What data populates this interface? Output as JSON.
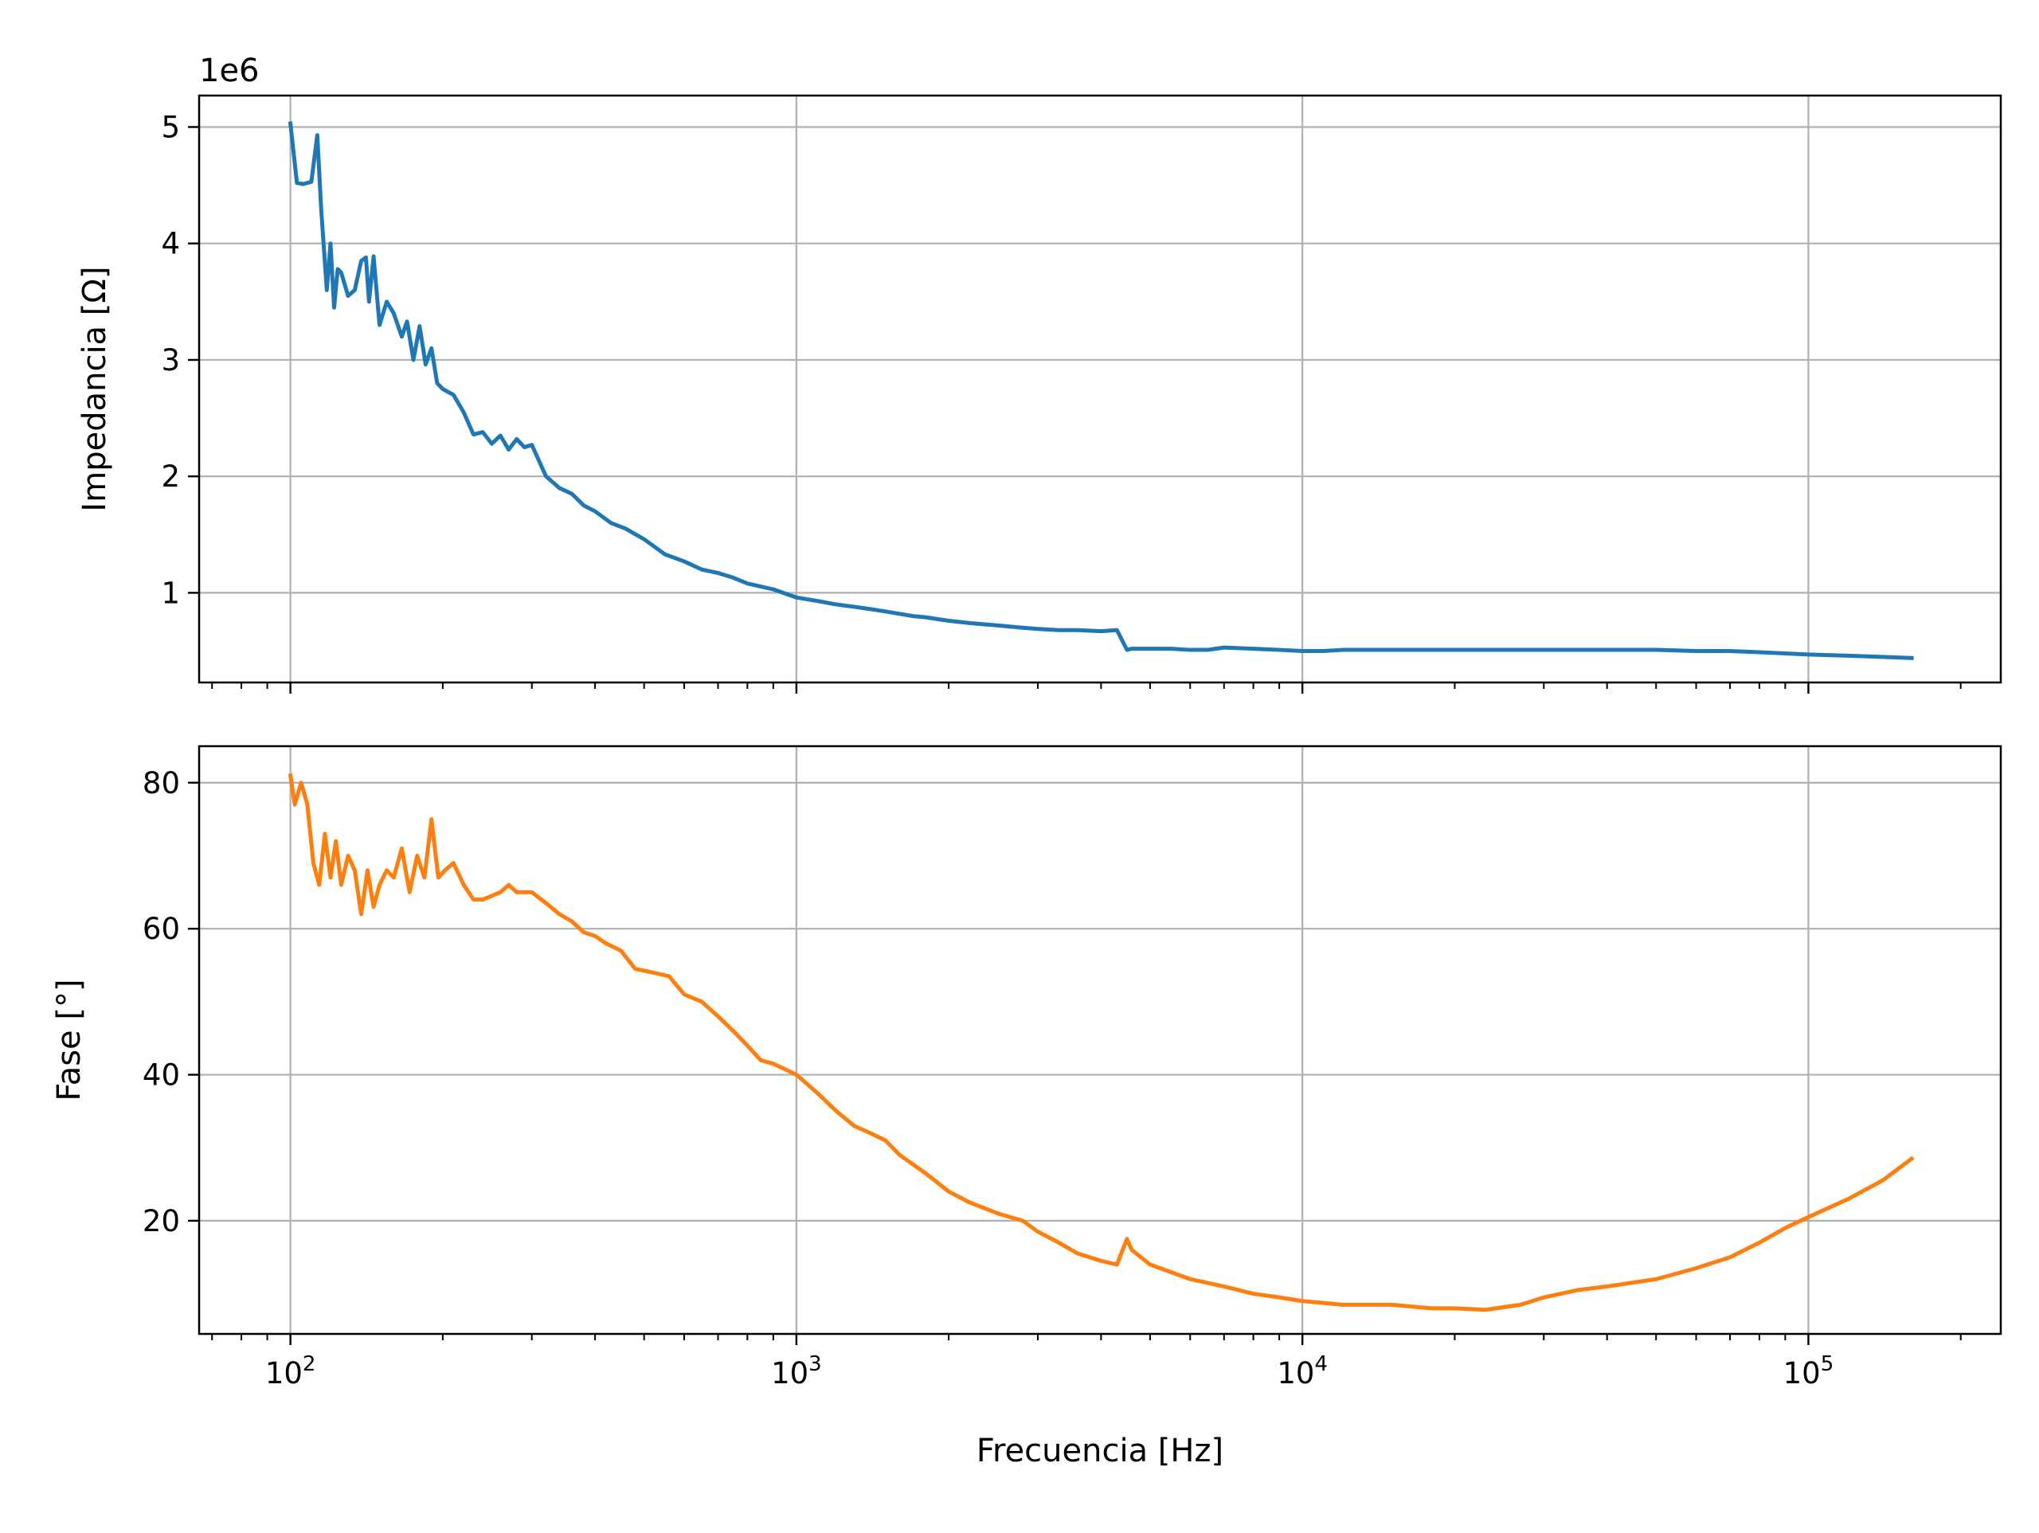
{
  "chart_data": [
    {
      "type": "line",
      "title": "",
      "xlabel": "",
      "ylabel": "Impedancia [Ω]",
      "x_scale": "log",
      "xlim": [
        66,
        240000
      ],
      "ylim": [
        230000,
        5270000
      ],
      "y_offset_label": "1e6",
      "x_ticks": [
        100,
        1000,
        10000,
        100000
      ],
      "x_tick_labels": [
        "",
        "",
        "",
        ""
      ],
      "y_ticks": [
        1000000,
        2000000,
        3000000,
        4000000,
        5000000
      ],
      "y_tick_labels": [
        "1",
        "2",
        "3",
        "4",
        "5"
      ],
      "grid": true,
      "legend": "none",
      "series": [
        {
          "color": "#1f77b4",
          "x": [
            100,
            103,
            106,
            110,
            113,
            115,
            118,
            120,
            122,
            124,
            126,
            130,
            134,
            138,
            141,
            143,
            146,
            150,
            155,
            160,
            166,
            170,
            175,
            180,
            185,
            190,
            195,
            200,
            210,
            220,
            230,
            240,
            250,
            260,
            270,
            280,
            290,
            300,
            320,
            340,
            360,
            380,
            400,
            430,
            460,
            500,
            550,
            600,
            650,
            700,
            750,
            800,
            900,
            1000,
            1100,
            1200,
            1300,
            1400,
            1500,
            1700,
            1800,
            2000,
            2200,
            2500,
            2800,
            3000,
            3300,
            3600,
            4000,
            4300,
            4500,
            4600,
            5000,
            5500,
            6000,
            6500,
            7000,
            8000,
            9000,
            10000,
            11000,
            12000,
            13000,
            15000,
            20000,
            30000,
            40000,
            50000,
            60000,
            70000,
            80000,
            90000,
            100000,
            120000,
            140000,
            160000
          ],
          "y": [
            5030000,
            4520000,
            4510000,
            4530000,
            4930000,
            4300000,
            3600000,
            4000000,
            3450000,
            3780000,
            3750000,
            3550000,
            3600000,
            3850000,
            3880000,
            3500000,
            3890000,
            3300000,
            3500000,
            3400000,
            3200000,
            3330000,
            3000000,
            3290000,
            2960000,
            3100000,
            2800000,
            2750000,
            2700000,
            2550000,
            2360000,
            2380000,
            2280000,
            2350000,
            2230000,
            2320000,
            2250000,
            2270000,
            2000000,
            1900000,
            1850000,
            1750000,
            1700000,
            1600000,
            1550000,
            1460000,
            1330000,
            1270000,
            1200000,
            1170000,
            1130000,
            1080000,
            1030000,
            960000,
            930000,
            900000,
            880000,
            860000,
            840000,
            800000,
            790000,
            760000,
            740000,
            720000,
            700000,
            690000,
            680000,
            680000,
            670000,
            680000,
            510000,
            520000,
            520000,
            520000,
            510000,
            510000,
            530000,
            520000,
            510000,
            500000,
            500000,
            510000,
            510000,
            510000,
            510000,
            510000,
            510000,
            510000,
            500000,
            500000,
            490000,
            480000,
            470000,
            460000,
            450000,
            440000
          ]
        }
      ]
    },
    {
      "type": "line",
      "title": "",
      "xlabel": "Frecuencia [Hz]",
      "ylabel": "Fase [°]",
      "x_scale": "log",
      "xlim": [
        66,
        240000
      ],
      "ylim": [
        4.5,
        85
      ],
      "x_ticks": [
        100,
        1000,
        10000,
        100000
      ],
      "x_tick_labels": [
        [
          "10",
          "2"
        ],
        [
          "10",
          "3"
        ],
        [
          "10",
          "4"
        ],
        [
          "10",
          "5"
        ]
      ],
      "y_ticks": [
        20,
        40,
        60,
        80
      ],
      "y_tick_labels": [
        "20",
        "40",
        "60",
        "80"
      ],
      "grid": true,
      "legend": "none",
      "series": [
        {
          "color": "#ff7f0e",
          "x": [
            100,
            102,
            105,
            108,
            111,
            114,
            117,
            120,
            123,
            126,
            130,
            134,
            138,
            142,
            146,
            150,
            155,
            160,
            166,
            172,
            178,
            184,
            190,
            196,
            202,
            210,
            220,
            230,
            240,
            250,
            260,
            270,
            280,
            300,
            320,
            340,
            360,
            380,
            400,
            420,
            450,
            480,
            520,
            560,
            600,
            650,
            700,
            750,
            800,
            850,
            900,
            1000,
            1100,
            1200,
            1300,
            1400,
            1500,
            1600,
            1800,
            2000,
            2200,
            2500,
            2800,
            3000,
            3300,
            3600,
            4000,
            4300,
            4500,
            4600,
            5000,
            6000,
            7000,
            8000,
            9000,
            10000,
            12000,
            15000,
            18000,
            20000,
            23000,
            27000,
            30000,
            35000,
            40000,
            50000,
            60000,
            70000,
            80000,
            90000,
            100000,
            120000,
            140000,
            160000
          ],
          "y": [
            81,
            77,
            80,
            77,
            69,
            66,
            73,
            67,
            72,
            66,
            70,
            68,
            62,
            68,
            63,
            66,
            68,
            67,
            71,
            65,
            70,
            67,
            75,
            67,
            68,
            69,
            66,
            64,
            64,
            64.5,
            65,
            66,
            65,
            65,
            63.5,
            62,
            61,
            59.5,
            59,
            58,
            57,
            54.5,
            54,
            53.5,
            51,
            50,
            48,
            46,
            44,
            42,
            41.5,
            40,
            37.5,
            35,
            33,
            32,
            31,
            29,
            26.5,
            24,
            22.5,
            21,
            20,
            18.5,
            17,
            15.5,
            14.5,
            14,
            17.5,
            16,
            14,
            12,
            11,
            10,
            9.5,
            9,
            8.5,
            8.5,
            8,
            8,
            7.8,
            8.5,
            9.5,
            10.5,
            11,
            12,
            13.5,
            15,
            17,
            19,
            20.5,
            23,
            25.5,
            28.5
          ]
        }
      ]
    }
  ]
}
